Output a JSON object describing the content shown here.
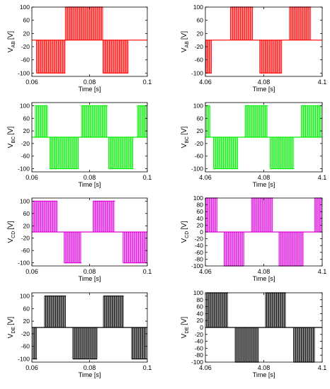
{
  "chart_data": [
    {
      "type": "line",
      "row": 0,
      "col": 0,
      "ylabel": "V",
      "ylabel_sub": "AB",
      "ylabel_unit": "[V]",
      "xlabel": "Time [s]",
      "xlim": [
        0.06,
        0.1
      ],
      "ylim": [
        -110,
        100
      ],
      "xticks": [
        "0.06",
        "0.08",
        "0.1"
      ],
      "xtick_values": [
        0.06,
        0.08,
        0.1
      ],
      "yticks": [
        "100",
        "60",
        "20",
        "-20",
        "-60",
        "-100"
      ],
      "ytick_values": [
        100,
        60,
        20,
        -20,
        -60,
        -100
      ],
      "series": [
        {
          "color": "#ff0000",
          "amplitude": 100,
          "positive_segments": [
            [
              0.0716,
              0.0846
            ]
          ],
          "negative_segments": [
            [
              0.0616,
              0.0716
            ],
            [
              0.0846,
              0.0934
            ]
          ]
        }
      ]
    },
    {
      "type": "line",
      "row": 0,
      "col": 1,
      "ylabel": "V",
      "ylabel_sub": "AB",
      "ylabel_unit": "[V]",
      "xlabel": "Time [s]",
      "xlim": [
        4.06,
        4.1
      ],
      "ylim": [
        -110,
        100
      ],
      "xticks": [
        "4.06",
        "4.08",
        "4.1"
      ],
      "xtick_values": [
        4.06,
        4.08,
        4.1
      ],
      "yticks": [
        "100",
        "60",
        "20",
        "-20",
        "-60",
        "-100"
      ],
      "ytick_values": [
        100,
        60,
        20,
        -20,
        -60,
        -100
      ],
      "series": [
        {
          "color": "#ff0000",
          "amplitude": 100,
          "positive_segments": [
            [
              4.0686,
              4.0764
            ],
            [
              4.0888,
              4.0962
            ]
          ],
          "negative_segments": [
            [
              4.0602,
              4.0622
            ],
            [
              4.0786,
              4.0862
            ]
          ]
        }
      ]
    },
    {
      "type": "line",
      "row": 1,
      "col": 0,
      "ylabel": "V",
      "ylabel_sub": "BC",
      "ylabel_unit": "[V]",
      "xlabel": "Time [s]",
      "xlim": [
        0.06,
        0.1
      ],
      "ylim": [
        -110,
        110
      ],
      "xticks": [
        "0.06",
        "0.08",
        "0.1"
      ],
      "xtick_values": [
        0.06,
        0.08,
        0.1
      ],
      "yticks": [
        "100",
        "60",
        "20",
        "-20",
        "-60",
        "-100"
      ],
      "ytick_values": [
        100,
        60,
        20,
        -20,
        -60,
        -100
      ],
      "series": [
        {
          "color": "#00ee00",
          "amplitude": 100,
          "positive_segments": [
            [
              0.0612,
              0.0654
            ],
            [
              0.0772,
              0.0862
            ],
            [
              0.0966,
              0.0998
            ]
          ],
          "negative_segments": [
            [
              0.0662,
              0.0762
            ],
            [
              0.0866,
              0.0952
            ]
          ]
        }
      ]
    },
    {
      "type": "line",
      "row": 1,
      "col": 1,
      "ylabel": "V",
      "ylabel_sub": "BC",
      "ylabel_unit": "[V]",
      "xlabel": "Time [s]",
      "xlim": [
        4.06,
        4.1
      ],
      "ylim": [
        -110,
        110
      ],
      "xticks": [
        "4.06",
        "4.08",
        "4.1"
      ],
      "xtick_values": [
        4.06,
        4.08,
        4.1
      ],
      "yticks": [
        "100",
        "60",
        "20",
        "-20",
        "-60",
        "-100"
      ],
      "ytick_values": [
        100,
        60,
        20,
        -20,
        -60,
        -100
      ],
      "series": [
        {
          "color": "#00ee00",
          "amplitude": 100,
          "positive_segments": [
            [
              4.0604,
              4.0616
            ],
            [
              4.0736,
              4.0814
            ],
            [
              4.0928,
              4.0998
            ]
          ],
          "negative_segments": [
            [
              4.0628,
              4.0712
            ],
            [
              4.0822,
              4.0904
            ]
          ]
        }
      ]
    },
    {
      "type": "line",
      "row": 2,
      "col": 0,
      "ylabel": "V",
      "ylabel_sub": "CD",
      "ylabel_unit": "[V]",
      "xlabel": "Time [s]",
      "xlim": [
        0.06,
        0.1
      ],
      "ylim": [
        -110,
        110
      ],
      "xticks": [
        "0.06",
        "0.08",
        "0.1"
      ],
      "xtick_values": [
        0.06,
        0.08,
        0.1
      ],
      "yticks": [
        "100",
        "60",
        "20",
        "-20",
        "-60",
        "-100"
      ],
      "ytick_values": [
        100,
        60,
        20,
        -20,
        -60,
        -100
      ],
      "series": [
        {
          "color": "#dd00dd",
          "amplitude": 100,
          "positive_segments": [
            [
              0.0604,
              0.0688
            ],
            [
              0.0812,
              0.0888
            ]
          ],
          "negative_segments": [
            [
              0.0712,
              0.0772
            ],
            [
              0.0916,
              0.0998
            ]
          ]
        }
      ]
    },
    {
      "type": "line",
      "row": 2,
      "col": 1,
      "ylabel": "V",
      "ylabel_sub": "CD",
      "ylabel_unit": "[V]",
      "xlabel": "Time [s]",
      "xlim": [
        4.06,
        4.1
      ],
      "ylim": [
        -100,
        100
      ],
      "xticks": [
        "4.06",
        "4.08",
        "4.1"
      ],
      "xtick_values": [
        4.06,
        4.08,
        4.1
      ],
      "yticks": [
        "100",
        "80",
        "60",
        "40",
        "20",
        "0",
        "-20",
        "-40",
        "-60",
        "-80",
        "-100"
      ],
      "ytick_values": [
        100,
        80,
        60,
        40,
        20,
        0,
        -20,
        -40,
        -60,
        -80,
        -100
      ],
      "series": [
        {
          "color": "#dd00dd",
          "amplitude": 100,
          "positive_segments": [
            [
              4.0602,
              4.0642
            ],
            [
              4.0758,
              4.0832
            ],
            [
              4.0974,
              4.0998
            ]
          ],
          "negative_segments": [
            [
              4.0664,
              4.0732
            ],
            [
              4.0852,
              4.0936
            ]
          ]
        }
      ]
    },
    {
      "type": "line",
      "row": 3,
      "col": 0,
      "ylabel": "V",
      "ylabel_sub": "DE",
      "ylabel_unit": "[V]",
      "xlabel": "Time [s]",
      "xlim": [
        0.06,
        0.1
      ],
      "ylim": [
        -110,
        110
      ],
      "xticks": [
        "0.06",
        "0.08",
        "0.1"
      ],
      "xtick_values": [
        0.06,
        0.08,
        0.1
      ],
      "yticks": [
        "100",
        "60",
        "20",
        "-20",
        "-60",
        "-100"
      ],
      "ytick_values": [
        100,
        60,
        20,
        -20,
        -60,
        -100
      ],
      "series": [
        {
          "color": "#000000",
          "amplitude": 100,
          "positive_segments": [
            [
              0.0644,
              0.0718
            ],
            [
              0.0848,
              0.0918
            ]
          ],
          "negative_segments": [
            [
              0.0604,
              0.0618
            ],
            [
              0.0742,
              0.0826
            ],
            [
              0.0946,
              0.0998
            ]
          ]
        }
      ]
    },
    {
      "type": "line",
      "row": 3,
      "col": 1,
      "ylabel": "V",
      "ylabel_sub": "DE",
      "ylabel_unit": "[V]",
      "xlabel": "Time [s]",
      "xlim": [
        4.06,
        4.1
      ],
      "ylim": [
        -100,
        100
      ],
      "xticks": [
        "4.06",
        "4.08",
        "4.1"
      ],
      "xtick_values": [
        4.06,
        4.08,
        4.1
      ],
      "yticks": [
        "100",
        "80",
        "60",
        "40",
        "20",
        "0",
        "-20",
        "-40",
        "-60",
        "-80",
        "-100"
      ],
      "ytick_values": [
        100,
        80,
        60,
        40,
        20,
        0,
        -20,
        -40,
        -60,
        -80,
        -100
      ],
      "series": [
        {
          "color": "#000000",
          "amplitude": 100,
          "positive_segments": [
            [
              4.0604,
              4.0678
            ],
            [
              4.0806,
              4.0876
            ]
          ],
          "negative_segments": [
            [
              4.0702,
              4.0784
            ],
            [
              4.0902,
              4.0974
            ]
          ]
        }
      ]
    }
  ]
}
